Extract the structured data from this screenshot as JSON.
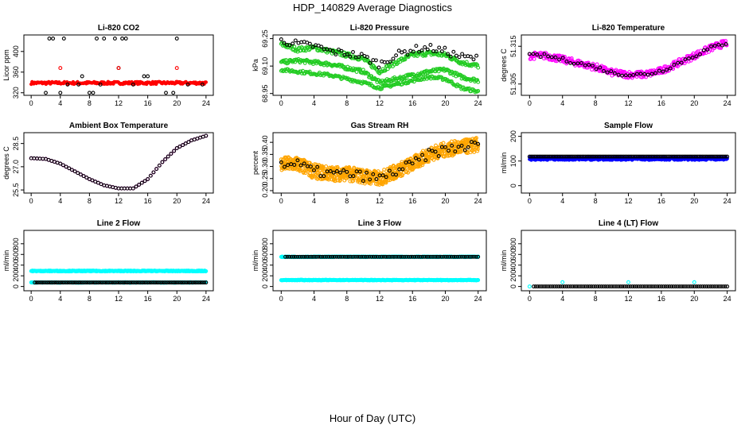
{
  "title": "HDP_140829  Average Diagnostics",
  "xlabel": "Hour of Day (UTC)",
  "colors": {
    "black": "#000000",
    "red": "#ff0000",
    "green": "#22cc22",
    "magenta": "#ff00ff",
    "orange": "#ffa500",
    "blue": "#0000ff",
    "cyan": "#00ffff"
  },
  "chart_data": [
    {
      "type": "scatter",
      "title": "Li-820 CO2",
      "ylabel": "Licor ppm",
      "xlim": [
        -1,
        25
      ],
      "ylim": [
        315,
        432
      ],
      "xticks": [
        0,
        4,
        8,
        12,
        16,
        20,
        24
      ],
      "xtick_labels": [
        "0",
        "4",
        "8",
        "12",
        "16",
        "20",
        "24"
      ],
      "yticks": [
        320,
        360,
        400
      ],
      "ytick_labels": [
        "320",
        "360",
        "400"
      ],
      "series": [
        {
          "name": "red",
          "color": "red",
          "marker": "dot",
          "kind": "band",
          "base": 339,
          "spread": 2.5,
          "step": 0.12
        },
        {
          "name": "black-levels",
          "color": "black",
          "marker": "circle",
          "kind": "levels",
          "levels": [
            425,
            368,
            352,
            336,
            320
          ],
          "step": 0.5
        },
        {
          "name": "red-levels",
          "color": "red",
          "marker": "circle",
          "kind": "points",
          "x": [
            4,
            12,
            20
          ],
          "y": [
            368,
            368,
            368
          ]
        }
      ]
    },
    {
      "type": "scatter",
      "title": "Li-820 Pressure",
      "ylabel": "kPa",
      "xlim": [
        -1,
        25
      ],
      "ylim": [
        68.94,
        69.27
      ],
      "xticks": [
        0,
        4,
        8,
        12,
        16,
        20,
        24
      ],
      "xtick_labels": [
        "0",
        "4",
        "8",
        "12",
        "16",
        "20",
        "24"
      ],
      "yticks": [
        68.95,
        69.1,
        69.25
      ],
      "ytick_labels": [
        "68.95",
        "69.10",
        "69.25"
      ],
      "series": [
        {
          "name": "green-upper",
          "color": "green",
          "marker": "circle",
          "kind": "curve",
          "x": [
            0,
            2,
            4,
            6,
            8,
            10,
            12,
            14,
            16,
            18,
            20,
            22,
            24
          ],
          "y": [
            69.22,
            69.19,
            69.2,
            69.18,
            69.16,
            69.14,
            69.07,
            69.12,
            69.16,
            69.17,
            69.16,
            69.12,
            69.1
          ],
          "spread": 0.012,
          "step": 0.1
        },
        {
          "name": "green-middle",
          "color": "green",
          "marker": "circle",
          "kind": "curve",
          "x": [
            0,
            2,
            4,
            6,
            8,
            10,
            12,
            14,
            16,
            18,
            20,
            22,
            24
          ],
          "y": [
            69.12,
            69.13,
            69.12,
            69.11,
            69.09,
            69.07,
            69.01,
            69.03,
            69.05,
            69.07,
            69.08,
            69.04,
            69.02
          ],
          "spread": 0.01,
          "step": 0.1
        },
        {
          "name": "green-lower",
          "color": "green",
          "marker": "circle",
          "kind": "curve",
          "x": [
            0,
            2,
            4,
            6,
            8,
            10,
            12,
            14,
            16,
            18,
            20,
            22,
            24
          ],
          "y": [
            69.08,
            69.07,
            69.06,
            69.05,
            69.03,
            69.01,
            68.98,
            69.0,
            69.02,
            69.04,
            69.03,
            68.98,
            68.96
          ],
          "spread": 0.008,
          "step": 0.12
        },
        {
          "name": "black",
          "color": "black",
          "marker": "circle",
          "kind": "curve",
          "x": [
            0,
            2,
            4,
            6,
            8,
            10,
            12,
            14,
            16,
            18,
            20,
            22,
            24
          ],
          "y": [
            69.24,
            69.22,
            69.21,
            69.18,
            69.17,
            69.15,
            69.11,
            69.16,
            69.19,
            69.2,
            69.18,
            69.15,
            69.14
          ],
          "spread": 0.02,
          "step": 0.35
        }
      ]
    },
    {
      "type": "scatter",
      "title": "Li-820 Temperature",
      "ylabel": "degrees C",
      "xlim": [
        -1,
        25
      ],
      "ylim": [
        51.302,
        51.318
      ],
      "xticks": [
        0,
        4,
        8,
        12,
        16,
        20,
        24
      ],
      "xtick_labels": [
        "0",
        "4",
        "8",
        "12",
        "16",
        "20",
        "24"
      ],
      "yticks": [
        51.305,
        51.315
      ],
      "ytick_labels": [
        "51.305",
        "51.315"
      ],
      "series": [
        {
          "name": "magenta",
          "color": "magenta",
          "marker": "circle",
          "kind": "curve",
          "x": [
            0,
            2,
            4,
            6,
            8,
            10,
            12,
            14,
            16,
            18,
            20,
            22,
            24
          ],
          "y": [
            51.3125,
            51.3125,
            51.3115,
            51.3105,
            51.3095,
            51.308,
            51.3075,
            51.3075,
            51.3085,
            51.3105,
            51.3125,
            51.3145,
            51.316
          ],
          "spread": 0.0009,
          "step": 0.07
        },
        {
          "name": "black",
          "color": "black",
          "marker": "circle",
          "kind": "curve",
          "x": [
            0,
            2,
            4,
            6,
            8,
            10,
            12,
            14,
            16,
            18,
            20,
            22,
            24
          ],
          "y": [
            51.3125,
            51.3125,
            51.3115,
            51.3105,
            51.3095,
            51.308,
            51.3075,
            51.3075,
            51.3085,
            51.3105,
            51.3125,
            51.3145,
            51.316
          ],
          "spread": 0.0005,
          "step": 0.45
        }
      ]
    },
    {
      "type": "scatter",
      "title": "Ambient Box Temperature",
      "ylabel": "degrees C",
      "xlim": [
        -1,
        25
      ],
      "ylim": [
        25.3,
        29.2
      ],
      "xticks": [
        0,
        4,
        8,
        12,
        16,
        20,
        24
      ],
      "xtick_labels": [
        "0",
        "4",
        "8",
        "12",
        "16",
        "20",
        "24"
      ],
      "yticks": [
        25.5,
        27.0,
        28.5
      ],
      "ytick_labels": [
        "25.5",
        "27.0",
        "28.5"
      ],
      "series": [
        {
          "name": "magenta",
          "color": "magenta",
          "marker": "circle",
          "kind": "curve",
          "x": [
            0,
            2,
            4,
            6,
            8,
            10,
            12,
            14,
            16,
            18,
            20,
            22,
            24
          ],
          "y": [
            27.55,
            27.5,
            27.2,
            26.7,
            26.2,
            25.8,
            25.6,
            25.6,
            26.2,
            27.3,
            28.2,
            28.7,
            29.0
          ],
          "spread": 0.0,
          "step": 0.4
        },
        {
          "name": "black",
          "color": "black",
          "marker": "circle",
          "kind": "curve",
          "x": [
            0,
            2,
            4,
            6,
            8,
            10,
            12,
            14,
            16,
            18,
            20,
            22,
            24
          ],
          "y": [
            27.55,
            27.5,
            27.2,
            26.7,
            26.2,
            25.8,
            25.6,
            25.6,
            26.2,
            27.3,
            28.2,
            28.7,
            29.0
          ],
          "spread": 0.0,
          "step": 0.4
        }
      ]
    },
    {
      "type": "scatter",
      "title": "Gas Stream RH",
      "ylabel": "percent",
      "xlim": [
        -1,
        25
      ],
      "ylim": [
        0.19,
        0.44
      ],
      "xticks": [
        0,
        4,
        8,
        12,
        16,
        20,
        24
      ],
      "xtick_labels": [
        "0",
        "4",
        "8",
        "12",
        "16",
        "20",
        "24"
      ],
      "yticks": [
        0.2,
        0.25,
        0.3,
        0.35,
        0.4
      ],
      "ytick_labels": [
        "0.20",
        "0.25",
        "0.30",
        "0.35",
        "0.40"
      ],
      "series": [
        {
          "name": "orange",
          "color": "orange",
          "marker": "circle",
          "kind": "curve",
          "x": [
            0,
            2,
            4,
            6,
            8,
            10,
            12,
            14,
            16,
            18,
            20,
            22,
            24
          ],
          "y": [
            0.31,
            0.31,
            0.28,
            0.27,
            0.27,
            0.26,
            0.25,
            0.28,
            0.31,
            0.35,
            0.37,
            0.38,
            0.39
          ],
          "spread": 0.03,
          "step": 0.03
        },
        {
          "name": "black",
          "color": "black",
          "marker": "circle",
          "kind": "curve",
          "x": [
            0,
            2,
            4,
            6,
            8,
            10,
            12,
            14,
            16,
            18,
            20,
            22,
            24
          ],
          "y": [
            0.31,
            0.31,
            0.28,
            0.27,
            0.27,
            0.26,
            0.25,
            0.28,
            0.31,
            0.35,
            0.37,
            0.38,
            0.39
          ],
          "spread": 0.02,
          "step": 0.4
        }
      ]
    },
    {
      "type": "scatter",
      "title": "Sample Flow",
      "ylabel": "ml/min",
      "xlim": [
        -1,
        25
      ],
      "ylim": [
        -30,
        215
      ],
      "xticks": [
        0,
        4,
        8,
        12,
        16,
        20,
        24
      ],
      "xtick_labels": [
        "0",
        "4",
        "8",
        "12",
        "16",
        "20",
        "24"
      ],
      "yticks": [
        0,
        100,
        200
      ],
      "ytick_labels": [
        "0",
        "100",
        "200"
      ],
      "series": [
        {
          "name": "blue",
          "color": "blue",
          "marker": "dot",
          "kind": "band",
          "base": 110,
          "spread": 6,
          "step": 0.04
        },
        {
          "name": "black",
          "color": "black",
          "marker": "circle",
          "kind": "band",
          "base": 118,
          "spread": 0,
          "step": 0.2
        }
      ]
    },
    {
      "type": "scatter",
      "title": "Line 2 Flow",
      "ylabel": "ml/min",
      "xlim": [
        -1,
        25
      ],
      "ylim": [
        -80,
        1050
      ],
      "xticks": [
        0,
        4,
        8,
        12,
        16,
        20,
        24
      ],
      "xtick_labels": [
        "0",
        "4",
        "8",
        "12",
        "16",
        "20",
        "24"
      ],
      "yticks": [
        0,
        200,
        400,
        600,
        800
      ],
      "ytick_labels": [
        "0",
        "200",
        "400",
        "600",
        "800"
      ],
      "series": [
        {
          "name": "cyan-high",
          "color": "cyan",
          "marker": "circle",
          "kind": "band",
          "base": 290,
          "spread": 8,
          "step": 0.06
        },
        {
          "name": "cyan-low",
          "color": "cyan",
          "marker": "circle",
          "kind": "band",
          "base": 75,
          "spread": 5,
          "step": 0.06
        },
        {
          "name": "black",
          "color": "black",
          "marker": "circle",
          "kind": "band",
          "base": 75,
          "spread": 0,
          "step": 0.25,
          "start": 0.5
        }
      ]
    },
    {
      "type": "scatter",
      "title": "Line 3 Flow",
      "ylabel": "ml/min",
      "xlim": [
        -1,
        25
      ],
      "ylim": [
        -80,
        1050
      ],
      "xticks": [
        0,
        4,
        8,
        12,
        16,
        20,
        24
      ],
      "xtick_labels": [
        "0",
        "4",
        "8",
        "12",
        "16",
        "20",
        "24"
      ],
      "yticks": [
        0,
        200,
        400,
        600,
        800
      ],
      "ytick_labels": [
        "0",
        "200",
        "400",
        "600",
        "800"
      ],
      "series": [
        {
          "name": "cyan-high",
          "color": "cyan",
          "marker": "circle",
          "kind": "band",
          "base": 555,
          "spread": 6,
          "step": 0.06
        },
        {
          "name": "cyan-low",
          "color": "cyan",
          "marker": "circle",
          "kind": "band",
          "base": 120,
          "spread": 6,
          "step": 0.06
        },
        {
          "name": "black",
          "color": "black",
          "marker": "circle",
          "kind": "band",
          "base": 555,
          "spread": 0,
          "step": 0.25,
          "start": 0.5
        }
      ]
    },
    {
      "type": "scatter",
      "title": "Line 4 (LT) Flow",
      "ylabel": "ml/min",
      "xlim": [
        -1,
        25
      ],
      "ylim": [
        -80,
        1050
      ],
      "xticks": [
        0,
        4,
        8,
        12,
        16,
        20,
        24
      ],
      "xtick_labels": [
        "0",
        "4",
        "8",
        "12",
        "16",
        "20",
        "24"
      ],
      "yticks": [
        0,
        200,
        400,
        600,
        800
      ],
      "ytick_labels": [
        "0",
        "200",
        "400",
        "600",
        "800"
      ],
      "series": [
        {
          "name": "cyan-pts",
          "color": "cyan",
          "marker": "circle",
          "kind": "points",
          "x": [
            0,
            4,
            12,
            20
          ],
          "y": [
            0,
            80,
            80,
            80
          ]
        },
        {
          "name": "black",
          "color": "black",
          "marker": "circle",
          "kind": "band",
          "base": 0,
          "spread": 0,
          "step": 0.25,
          "start": 0.5
        }
      ]
    }
  ]
}
